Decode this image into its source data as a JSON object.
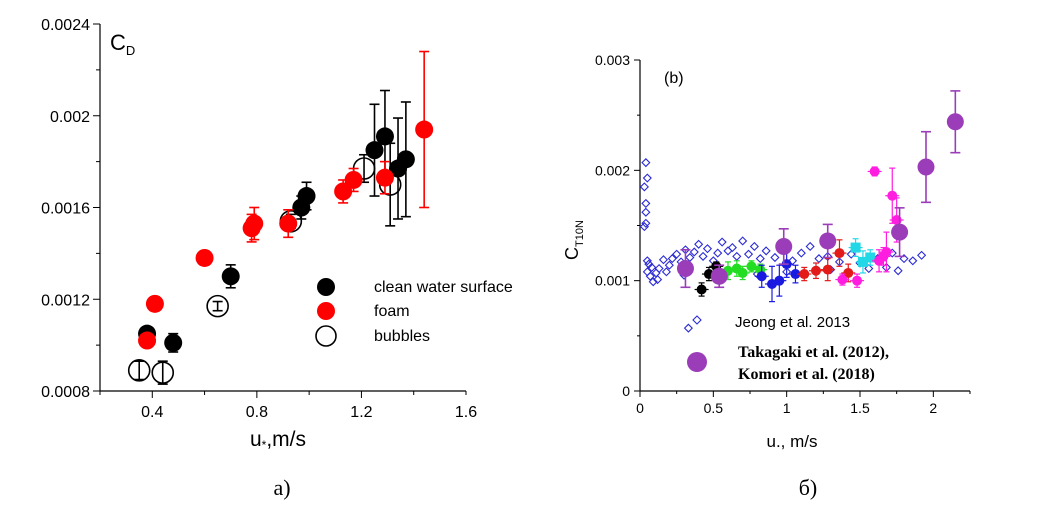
{
  "chart_data": [
    {
      "type": "scatter",
      "panel_label": "a)",
      "corner_label": "C_D",
      "xlabel": "u*,m/s",
      "ylabel": "",
      "xlim": [
        0.2,
        1.6
      ],
      "ylim": [
        0.0008,
        0.0024
      ],
      "xticks": [
        "0.4",
        "0.8",
        "1.2",
        "1.6"
      ],
      "yticks": [
        "0.0008",
        "0.0012",
        "0.0016",
        "0.002",
        "0.0024"
      ],
      "legend_position": "middle-right",
      "series": [
        {
          "name": "clean water surface",
          "color": "#000000",
          "marker": "filled-circle",
          "points": [
            {
              "x": 0.38,
              "y": 0.00105,
              "err": 3e-05
            },
            {
              "x": 0.48,
              "y": 0.00101,
              "err": 4e-05
            },
            {
              "x": 0.7,
              "y": 0.0013,
              "err": 5e-05
            },
            {
              "x": 0.97,
              "y": 0.0016,
              "err": 5e-05
            },
            {
              "x": 0.99,
              "y": 0.00165,
              "err": 6e-05
            },
            {
              "x": 1.25,
              "y": 0.00185,
              "err": 0.0002
            },
            {
              "x": 1.29,
              "y": 0.00191,
              "err": 0.0002
            },
            {
              "x": 1.34,
              "y": 0.00177,
              "err": 0.00022
            },
            {
              "x": 1.37,
              "y": 0.00181,
              "err": 0.00025
            }
          ]
        },
        {
          "name": "foam",
          "color": "#ff0000",
          "marker": "filled-circle",
          "points": [
            {
              "x": 0.38,
              "y": 0.00102,
              "err": 2e-05
            },
            {
              "x": 0.41,
              "y": 0.00118,
              "err": 3e-05
            },
            {
              "x": 0.6,
              "y": 0.00138,
              "err": 3e-05
            },
            {
              "x": 0.78,
              "y": 0.00151,
              "err": 6e-05
            },
            {
              "x": 0.79,
              "y": 0.00153,
              "err": 7e-05
            },
            {
              "x": 0.92,
              "y": 0.00153,
              "err": 6e-05
            },
            {
              "x": 1.13,
              "y": 0.00167,
              "err": 5e-05
            },
            {
              "x": 1.17,
              "y": 0.00172,
              "err": 5e-05
            },
            {
              "x": 1.29,
              "y": 0.00173,
              "err": 7e-05
            },
            {
              "x": 1.44,
              "y": 0.00194,
              "err": 0.00034
            }
          ]
        },
        {
          "name": "bubbles",
          "color": "#000000",
          "marker": "open-circle",
          "points": [
            {
              "x": 0.35,
              "y": 0.00089,
              "err": 4e-05
            },
            {
              "x": 0.44,
              "y": 0.00088,
              "err": 5e-05
            },
            {
              "x": 0.65,
              "y": 0.00117,
              "err": 2e-05
            },
            {
              "x": 0.93,
              "y": 0.00154,
              "err": 3e-05
            },
            {
              "x": 1.21,
              "y": 0.00177,
              "err": 6e-05
            },
            {
              "x": 1.31,
              "y": 0.0017,
              "err": 0.00018
            }
          ]
        }
      ]
    },
    {
      "type": "scatter",
      "panel_label": "б)",
      "corner_label": "(b)",
      "xlabel": "u., m/s",
      "ylabel": "C_T10N",
      "xlim": [
        0,
        2.25
      ],
      "ylim": [
        0,
        0.003
      ],
      "xticks": [
        "0",
        "0.5",
        "1",
        "1.5",
        "2"
      ],
      "yticks": [
        "0",
        "0.001",
        "0.002",
        "0.003"
      ],
      "legend": [
        {
          "name": "Jeong et al. 2013",
          "color": "#2b2bd6",
          "marker": "open-diamond"
        },
        {
          "name_lines": [
            "Takagaki et al. (2012),",
            "Komori et al. (2018)"
          ],
          "color": "#9b3db8",
          "marker": "filled-circle"
        }
      ],
      "series": [
        {
          "name": "Jeong et al. 2013",
          "color": "#2b2bd6",
          "marker": "open-diamond",
          "points": [
            {
              "x": 0.04,
              "y": 0.00207
            },
            {
              "x": 0.05,
              "y": 0.00193
            },
            {
              "x": 0.03,
              "y": 0.00185
            },
            {
              "x": 0.04,
              "y": 0.0017
            },
            {
              "x": 0.04,
              "y": 0.00162
            },
            {
              "x": 0.04,
              "y": 0.00152
            },
            {
              "x": 0.03,
              "y": 0.00149
            },
            {
              "x": 0.05,
              "y": 0.00118
            },
            {
              "x": 0.06,
              "y": 0.00115
            },
            {
              "x": 0.05,
              "y": 0.00108
            },
            {
              "x": 0.07,
              "y": 0.00104
            },
            {
              "x": 0.08,
              "y": 0.00112
            },
            {
              "x": 0.09,
              "y": 0.00099
            },
            {
              "x": 0.11,
              "y": 0.00107
            },
            {
              "x": 0.12,
              "y": 0.00101
            },
            {
              "x": 0.13,
              "y": 0.00111
            },
            {
              "x": 0.16,
              "y": 0.00119
            },
            {
              "x": 0.18,
              "y": 0.00108
            },
            {
              "x": 0.2,
              "y": 0.00114
            },
            {
              "x": 0.22,
              "y": 0.0012
            },
            {
              "x": 0.25,
              "y": 0.00124
            },
            {
              "x": 0.28,
              "y": 0.00117
            },
            {
              "x": 0.31,
              "y": 0.00128
            },
            {
              "x": 0.34,
              "y": 0.00121
            },
            {
              "x": 0.37,
              "y": 0.00126
            },
            {
              "x": 0.4,
              "y": 0.00133
            },
            {
              "x": 0.43,
              "y": 0.00122
            },
            {
              "x": 0.46,
              "y": 0.00129
            },
            {
              "x": 0.5,
              "y": 0.00118
            },
            {
              "x": 0.53,
              "y": 0.00125
            },
            {
              "x": 0.56,
              "y": 0.00135
            },
            {
              "x": 0.6,
              "y": 0.00127
            },
            {
              "x": 0.63,
              "y": 0.0013
            },
            {
              "x": 0.66,
              "y": 0.00122
            },
            {
              "x": 0.7,
              "y": 0.00136
            },
            {
              "x": 0.74,
              "y": 0.00124
            },
            {
              "x": 0.78,
              "y": 0.00131
            },
            {
              "x": 0.82,
              "y": 0.0012
            },
            {
              "x": 0.86,
              "y": 0.00127
            },
            {
              "x": 0.92,
              "y": 0.00121
            },
            {
              "x": 0.98,
              "y": 0.00129
            },
            {
              "x": 1.04,
              "y": 0.00118
            },
            {
              "x": 1.1,
              "y": 0.00125
            },
            {
              "x": 1.16,
              "y": 0.00131
            },
            {
              "x": 1.22,
              "y": 0.0012
            },
            {
              "x": 1.28,
              "y": 0.00122
            },
            {
              "x": 1.36,
              "y": 0.00117
            },
            {
              "x": 1.44,
              "y": 0.00124
            },
            {
              "x": 1.5,
              "y": 0.00116
            },
            {
              "x": 1.56,
              "y": 0.00111
            },
            {
              "x": 1.62,
              "y": 0.0012
            },
            {
              "x": 1.68,
              "y": 0.00112
            },
            {
              "x": 1.72,
              "y": 0.00125
            },
            {
              "x": 1.76,
              "y": 0.00109
            },
            {
              "x": 1.8,
              "y": 0.0012
            },
            {
              "x": 1.86,
              "y": 0.00118
            },
            {
              "x": 1.92,
              "y": 0.00123
            },
            {
              "x": 0.3,
              "y": 0.00105
            },
            {
              "x": 0.55,
              "y": 0.00103
            },
            {
              "x": 0.8,
              "y": 0.00106
            },
            {
              "x": 1.0,
              "y": 0.00108
            },
            {
              "x": 1.3,
              "y": 0.0011
            },
            {
              "x": 0.33,
              "y": 0.00057
            }
          ]
        },
        {
          "name": "Takagaki et al. (2012), Komori et al. (2018)",
          "color": "#9b3db8",
          "marker": "filled-circle",
          "points": [
            {
              "x": 0.31,
              "y": 0.00111,
              "err": 0.00017
            },
            {
              "x": 0.54,
              "y": 0.00104,
              "err": 0.0001
            },
            {
              "x": 0.98,
              "y": 0.00131,
              "err": 0.00016
            },
            {
              "x": 1.28,
              "y": 0.00136,
              "err": 0.00015
            },
            {
              "x": 1.77,
              "y": 0.00144,
              "err": 0.00022
            },
            {
              "x": 1.95,
              "y": 0.00203,
              "err": 0.00032
            },
            {
              "x": 2.15,
              "y": 0.00244,
              "err": 0.00028
            }
          ]
        },
        {
          "name": "",
          "color": "#000000",
          "marker": "filled-circle",
          "points": [
            {
              "x": 0.42,
              "y": 0.00092,
              "err": 6e-05
            },
            {
              "x": 0.47,
              "y": 0.00106,
              "err": 6e-05
            },
            {
              "x": 0.52,
              "y": 0.00113,
              "err": 4e-05
            }
          ]
        },
        {
          "name": "",
          "color": "#22dd22",
          "marker": "filled-circle",
          "points": [
            {
              "x": 0.6,
              "y": 0.00109,
              "err": 8e-05
            },
            {
              "x": 0.66,
              "y": 0.00111,
              "err": 7e-05
            },
            {
              "x": 0.7,
              "y": 0.00107,
              "err": 6e-05
            },
            {
              "x": 0.76,
              "y": 0.00113,
              "err": 5e-05
            },
            {
              "x": 0.82,
              "y": 0.0011,
              "err": 5e-05
            }
          ]
        },
        {
          "name": "",
          "color": "#1a1ae0",
          "marker": "filled-circle",
          "points": [
            {
              "x": 0.83,
              "y": 0.00104,
              "err": 0.0001
            },
            {
              "x": 0.9,
              "y": 0.00097,
              "err": 0.00016
            },
            {
              "x": 0.95,
              "y": 0.001,
              "err": 0.00014
            },
            {
              "x": 1.0,
              "y": 0.00115,
              "err": 0.00012
            },
            {
              "x": 1.06,
              "y": 0.00106,
              "err": 8e-05
            }
          ]
        },
        {
          "name": "",
          "color": "#e31a1a",
          "marker": "filled-circle",
          "points": [
            {
              "x": 1.12,
              "y": 0.00106,
              "err": 6e-05
            },
            {
              "x": 1.2,
              "y": 0.00109,
              "err": 7e-05
            },
            {
              "x": 1.28,
              "y": 0.0011,
              "err": 0.0001
            },
            {
              "x": 1.36,
              "y": 0.00125,
              "err": 0.00012
            },
            {
              "x": 1.42,
              "y": 0.00107,
              "err": 8e-05
            }
          ]
        },
        {
          "name": "",
          "color": "#22d8e6",
          "marker": "filled-square",
          "points": [
            {
              "x": 1.47,
              "y": 0.0013,
              "err": 8e-05
            },
            {
              "x": 1.52,
              "y": 0.00117,
              "err": 0.0001
            },
            {
              "x": 1.57,
              "y": 0.00121,
              "err": 7e-05
            }
          ]
        },
        {
          "name": "",
          "color": "#ff1ee0",
          "marker": "filled-circle",
          "points": [
            {
              "x": 1.38,
              "y": 0.00101,
              "err": 5e-05
            },
            {
              "x": 1.48,
              "y": 0.001,
              "err": 6e-05
            },
            {
              "x": 1.6,
              "y": 0.00199,
              "err": 4e-05
            },
            {
              "x": 1.63,
              "y": 0.00118,
              "err": 0.0001
            },
            {
              "x": 1.68,
              "y": 0.00126,
              "err": 0.00018
            },
            {
              "x": 1.72,
              "y": 0.00177,
              "err": 0.00025
            },
            {
              "x": 1.75,
              "y": 0.00155,
              "err": 0.0002
            },
            {
              "x": 1.66,
              "y": 0.00122,
              "err": 8e-05
            }
          ]
        }
      ]
    }
  ]
}
